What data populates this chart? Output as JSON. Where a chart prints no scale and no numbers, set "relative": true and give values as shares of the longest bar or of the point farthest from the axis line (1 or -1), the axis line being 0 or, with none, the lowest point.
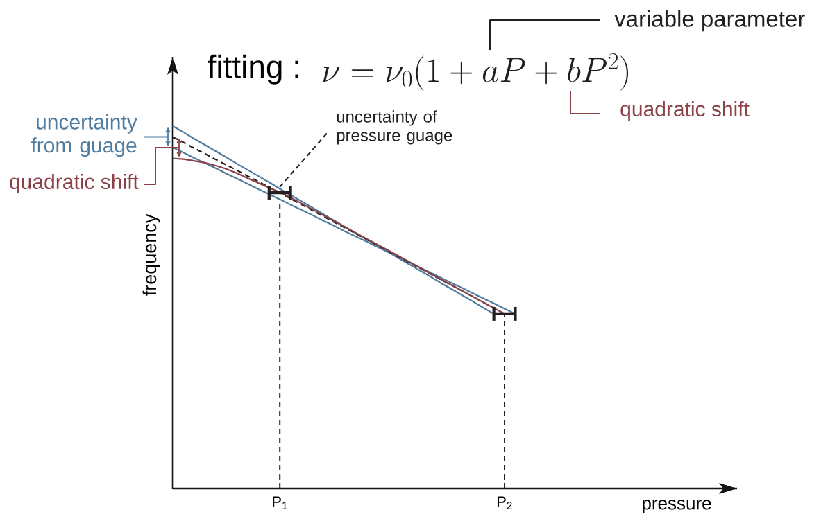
{
  "chart_data": {
    "type": "line",
    "title": "fitting :",
    "xlabel": "pressure",
    "ylabel": "frequency",
    "relative": true,
    "categories": [
      null,
      null,
      null,
      null,
      null,
      null,
      null,
      null,
      null,
      null,
      "P$_{1}$",
      null,
      null,
      null,
      null,
      null,
      null,
      null,
      null,
      null,
      null,
      null,
      null,
      null,
      null,
      null,
      null,
      null,
      null,
      null,
      null,
      "P$_{2}$",
      null,
      null,
      null,
      null,
      null,
      null,
      null,
      null,
      null,
      null,
      null,
      null,
      null,
      null,
      null,
      null,
      null,
      null,
      null,
      null,
      null
    ],
    "series": [
      {
        "color": "#4e7b9e",
        "values": [
          1.0,
          0.983,
          0.965,
          0.948,
          0.931,
          0.914,
          0.896,
          0.879,
          0.862,
          0.845,
          0.827,
          0.81,
          0.793,
          0.776,
          0.758,
          0.741,
          0.724,
          0.706,
          0.689,
          0.672,
          0.655,
          0.637,
          0.62,
          0.603,
          0.586,
          0.568,
          0.551,
          0.534,
          0.517,
          0.499,
          0.482,
          null,
          null,
          null,
          null,
          null,
          null,
          null,
          null,
          null,
          null,
          null,
          null,
          null,
          null,
          null,
          null,
          null,
          null,
          null,
          null,
          null,
          null
        ]
      },
      {
        "color": "#4e7b9e",
        "values": [
          0.941,
          0.927,
          0.912,
          0.898,
          0.884,
          0.869,
          0.855,
          0.841,
          0.826,
          0.812,
          0.798,
          0.783,
          0.769,
          0.755,
          0.74,
          0.726,
          0.711,
          0.697,
          0.683,
          0.668,
          0.654,
          0.64,
          0.625,
          0.611,
          0.597,
          0.582,
          0.568,
          0.554,
          0.539,
          0.525,
          0.511,
          0.496,
          0.482,
          null,
          null,
          null,
          null,
          null,
          null,
          null,
          null,
          null,
          null,
          null,
          null,
          null,
          null,
          null,
          null,
          null,
          null,
          null,
          null
        ]
      },
      {
        "color": "#231f20",
        "line_style": "dashed",
        "values": [
          0.97,
          0.955,
          0.939,
          0.924,
          0.908,
          0.893,
          0.878,
          0.862,
          0.847,
          0.831,
          0.816,
          0.8,
          0.784,
          0.768,
          0.752,
          0.736,
          0.721,
          0.705,
          0.689,
          0.673,
          0.657,
          0.641,
          0.625,
          0.609,
          0.593,
          0.577,
          0.562,
          0.546,
          0.53,
          0.514,
          0.498,
          0.482,
          null,
          null,
          null,
          null,
          null,
          null,
          null,
          null,
          null,
          null,
          null,
          null,
          null,
          null,
          null,
          null,
          null,
          null,
          null,
          null,
          null
        ]
      },
      {
        "color": "#8b4148",
        "values": [
          0.911,
          0.909,
          0.904,
          0.899,
          0.891,
          0.882,
          0.87,
          0.856,
          0.843,
          0.83,
          0.818,
          0.803,
          0.787,
          0.771,
          0.755,
          0.739,
          0.723,
          0.707,
          0.691,
          0.675,
          0.659,
          0.643,
          0.627,
          0.611,
          0.594,
          0.578,
          0.562,
          0.546,
          0.53,
          0.514,
          0.498,
          0.482,
          null,
          null,
          null,
          null,
          null,
          null,
          null,
          null,
          null,
          null,
          null,
          null,
          null,
          null,
          null,
          null,
          null,
          null,
          null,
          null,
          null
        ]
      },
      {
        "color": "#231f20",
        "values": [
          null,
          null,
          null,
          null,
          null,
          null,
          null,
          null,
          null,
          0.816,
          0.816,
          0.816,
          null,
          null,
          null,
          null,
          null,
          null,
          null,
          null,
          null,
          null,
          null,
          null,
          null,
          null,
          null,
          null,
          null,
          null,
          0.482,
          0.482,
          0.482,
          null,
          null,
          null,
          null,
          null,
          null,
          null,
          null,
          null,
          null,
          null,
          null,
          null,
          null,
          null,
          null,
          null,
          null,
          null,
          null
        ]
      }
    ],
    "ref_lines": [
      {
        "axis": "x",
        "value": "P$_{1}$",
        "color": "#231f20",
        "line_style": "dashed"
      },
      {
        "axis": "x",
        "value": "P$_{2}$",
        "color": "#231f20",
        "line_style": "dashed"
      }
    ],
    "annotations": [
      "\\nu = \\nu_0(1 + aP + bP^2)",
      "variable parameter",
      "quadratic shift",
      "uncertainty of pressure guage",
      "uncertainty from guage",
      "quadratic shift"
    ]
  }
}
